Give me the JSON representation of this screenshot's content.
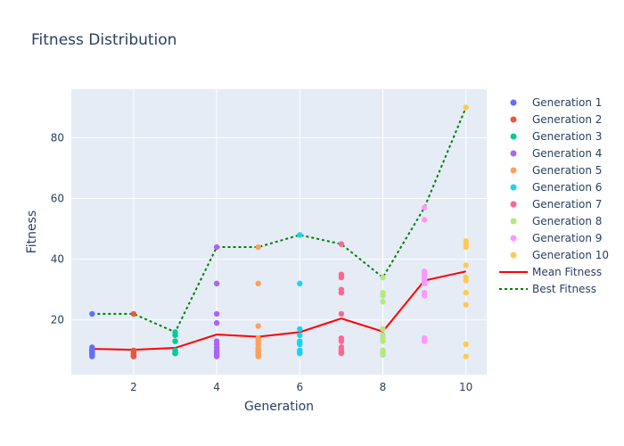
{
  "chart_data": {
    "type": "scatter",
    "title": "Fitness Distribution",
    "xlabel": "Generation",
    "ylabel": "Fitness",
    "xlim": [
      0.5,
      10.5
    ],
    "ylim": [
      2,
      96
    ],
    "x_ticks": [
      2,
      4,
      6,
      8,
      10
    ],
    "y_ticks": [
      20,
      40,
      60,
      80
    ],
    "grid": true,
    "legend_position": "right",
    "colors": {
      "plot_background": "#e5ecf6",
      "grid": "#ffffff",
      "text": "#2a3f5f",
      "mean_line": "#ff0000",
      "best_line": "#008000"
    },
    "series": [
      {
        "name": "Generation 1",
        "color": "#636efa",
        "x": 1,
        "values": [
          22,
          11,
          10.5,
          10,
          10,
          9.5,
          9,
          9,
          8.5,
          8
        ]
      },
      {
        "name": "Generation 2",
        "color": "#ef553b",
        "x": 2,
        "values": [
          22,
          10,
          9.5,
          9,
          9,
          8.5,
          8.5,
          8,
          8
        ]
      },
      {
        "name": "Generation 3",
        "color": "#00cc96",
        "x": 3,
        "values": [
          16,
          15,
          13,
          10,
          9.5,
          9,
          9
        ]
      },
      {
        "name": "Generation 4",
        "color": "#ab63fa",
        "x": 4,
        "values": [
          44,
          32,
          22,
          19,
          13,
          12,
          11,
          10,
          9.5,
          9,
          8.5,
          8
        ]
      },
      {
        "name": "Generation 5",
        "color": "#ffa15a",
        "x": 5,
        "values": [
          44,
          32,
          18,
          14,
          13,
          12,
          11,
          10.5,
          10,
          9.5,
          9,
          8.5,
          8
        ]
      },
      {
        "name": "Generation 6",
        "color": "#19d3f3",
        "x": 6,
        "values": [
          48,
          32,
          17,
          15,
          13,
          12.5,
          12,
          10,
          9.5,
          9
        ]
      },
      {
        "name": "Generation 7",
        "color": "#ff6692",
        "x": 7,
        "values": [
          45,
          35,
          34,
          30,
          29,
          22,
          14,
          13,
          11,
          10,
          9.5,
          9
        ]
      },
      {
        "name": "Generation 8",
        "color": "#b6e880",
        "x": 8,
        "values": [
          34,
          29,
          28,
          26,
          17,
          15,
          14,
          13,
          10,
          9.5,
          9,
          8.5
        ]
      },
      {
        "name": "Generation 9",
        "color": "#ff97ff",
        "x": 9,
        "values": [
          57,
          53,
          36,
          35,
          34,
          33,
          32,
          29,
          28,
          14,
          13
        ]
      },
      {
        "name": "Generation 10",
        "color": "#fecb52",
        "x": 10,
        "values": [
          90,
          46,
          45,
          44,
          38,
          34,
          33,
          29,
          25,
          12,
          8
        ]
      }
    ],
    "lines": [
      {
        "name": "Mean Fitness",
        "color": "#ff0000",
        "style": "solid",
        "x": [
          1,
          2,
          3,
          4,
          5,
          6,
          7,
          8,
          9,
          10
        ],
        "y": [
          10.5,
          10.2,
          10.8,
          15.2,
          14.5,
          16.0,
          20.5,
          16.2,
          33.0,
          36.0
        ]
      },
      {
        "name": "Best Fitness",
        "color": "#008000",
        "style": "dotted",
        "x": [
          1,
          2,
          3,
          4,
          5,
          6,
          7,
          8,
          9,
          10
        ],
        "y": [
          22,
          22,
          16,
          44,
          44,
          48,
          45,
          34,
          57,
          90
        ]
      }
    ]
  }
}
